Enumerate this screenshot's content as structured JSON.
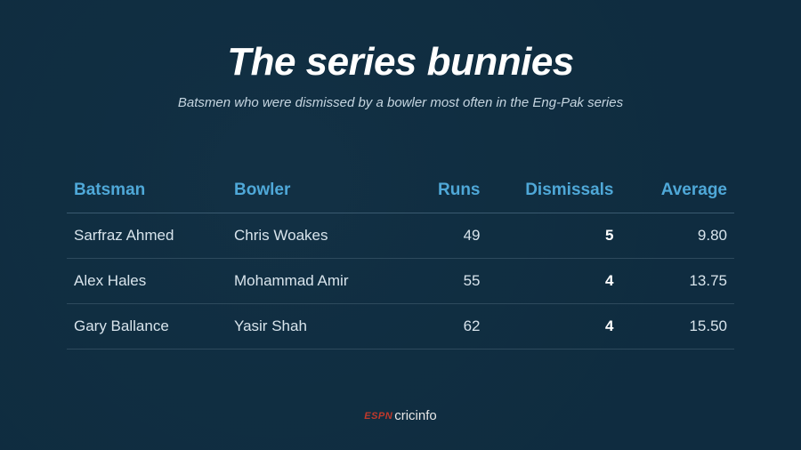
{
  "title": "The series bunnies",
  "subtitle": "Batsmen who were dismissed by a bowler most often in the Eng-Pak series",
  "table": {
    "columns": [
      "Batsman",
      "Bowler",
      "Runs",
      "Dismissals",
      "Average"
    ],
    "rows": [
      {
        "batsman": "Sarfraz Ahmed",
        "bowler": "Chris Woakes",
        "runs": "49",
        "dismissals": "5",
        "average": "9.80"
      },
      {
        "batsman": "Alex Hales",
        "bowler": "Mohammad Amir",
        "runs": "55",
        "dismissals": "4",
        "average": "13.75"
      },
      {
        "batsman": "Gary Ballance",
        "bowler": "Yasir Shah",
        "runs": "62",
        "dismissals": "4",
        "average": "15.50"
      }
    ]
  },
  "footer": {
    "brand1": "ESPN",
    "brand2": "cricinfo"
  },
  "colors": {
    "background_overlay": "#0f2d41",
    "title_color": "#ffffff",
    "subtitle_color": "#c5d5e0",
    "header_color": "#4fa8d8",
    "cell_color": "#d8e4ec",
    "highlight_color": "#ffffff",
    "border_color": "#3a5a70",
    "espn_color": "#c0392b"
  },
  "typography": {
    "title_fontsize": 44,
    "subtitle_fontsize": 15,
    "header_fontsize": 19,
    "cell_fontsize": 17
  }
}
